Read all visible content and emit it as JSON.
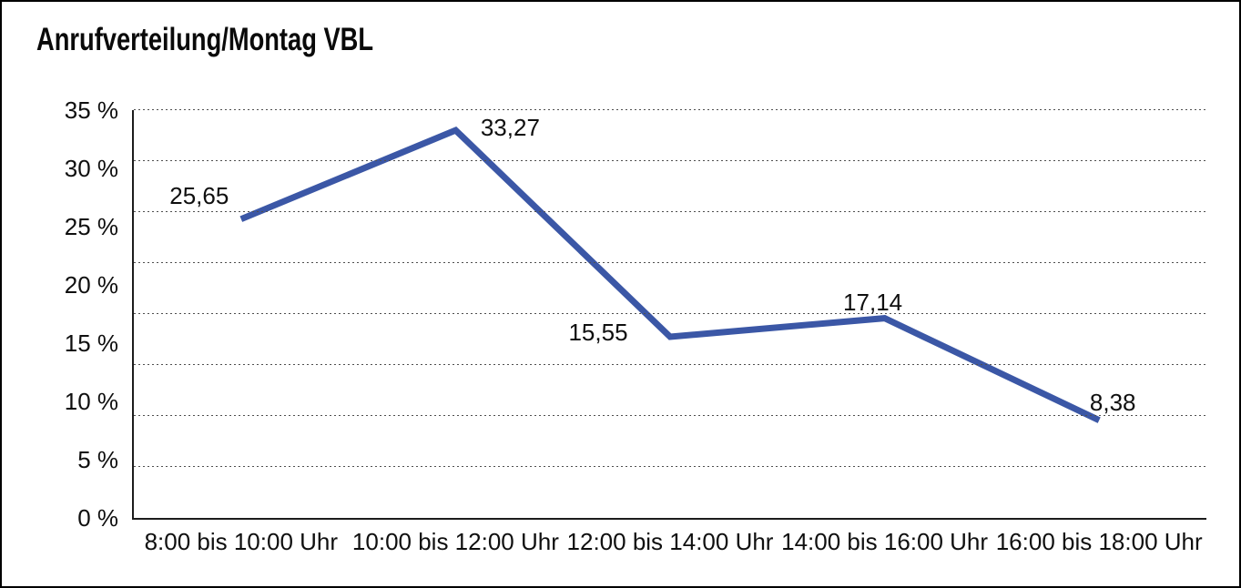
{
  "window": {
    "background_color": "#ffffff",
    "border_color": "#000000"
  },
  "chart_data": {
    "type": "line",
    "title": "Anrufverteilung/Montag VBL",
    "categories": [
      "8:00 bis 10:00 Uhr",
      "10:00 bis 12:00 Uhr",
      "12:00 bis 14:00 Uhr",
      "14:00 bis 16:00 Uhr",
      "16:00 bis 18:00 Uhr"
    ],
    "values": [
      25.65,
      33.27,
      15.55,
      17.14,
      8.38
    ],
    "value_labels": [
      "25,65",
      "33,27",
      "15,55",
      "17,14",
      "8,38"
    ],
    "xlabel": "",
    "ylabel": "",
    "unit": "%",
    "ylim": [
      0,
      35
    ],
    "y_tick_step": 5,
    "y_tick_labels": [
      "35 %",
      "30 %",
      "25 %",
      "20 %",
      "15 %",
      "10 %",
      "5 %",
      "0 %"
    ],
    "grid": "horizontal-dotted",
    "legend": "none",
    "line_color": "#3b57a6",
    "grid_color": "#4f4f4f",
    "axis_color": "#1c1c1c",
    "text_color": "#0f0f0f"
  }
}
